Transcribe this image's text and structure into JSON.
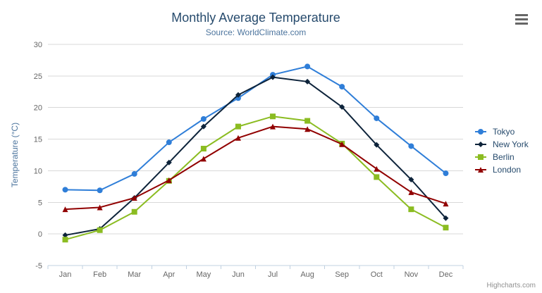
{
  "chart_data": {
    "type": "line",
    "title": "Monthly Average Temperature",
    "subtitle": "Source: WorldClimate.com",
    "xlabel": "",
    "ylabel": "Temperature (°C)",
    "categories": [
      "Jan",
      "Feb",
      "Mar",
      "Apr",
      "May",
      "Jun",
      "Jul",
      "Aug",
      "Sep",
      "Oct",
      "Nov",
      "Dec"
    ],
    "ylim": [
      -5,
      30
    ],
    "yticks": [
      -5,
      0,
      5,
      10,
      15,
      20,
      25,
      30
    ],
    "grid": true,
    "legend_position": "right",
    "series": [
      {
        "name": "Tokyo",
        "color": "#2f7ed8",
        "marker": "circle",
        "values": [
          7.0,
          6.9,
          9.5,
          14.5,
          18.2,
          21.5,
          25.2,
          26.5,
          23.3,
          18.3,
          13.9,
          9.6
        ]
      },
      {
        "name": "New York",
        "color": "#0d233a",
        "marker": "diamond",
        "values": [
          -0.2,
          0.8,
          5.7,
          11.3,
          17.0,
          22.0,
          24.8,
          24.1,
          20.1,
          14.1,
          8.6,
          2.5
        ]
      },
      {
        "name": "Berlin",
        "color": "#8bbc21",
        "marker": "square",
        "values": [
          -0.9,
          0.6,
          3.5,
          8.4,
          13.5,
          17.0,
          18.6,
          17.9,
          14.3,
          9.0,
          3.9,
          1.0
        ]
      },
      {
        "name": "London",
        "color": "#910000",
        "marker": "triangle",
        "values": [
          3.9,
          4.2,
          5.7,
          8.5,
          11.9,
          15.2,
          17.0,
          16.6,
          14.2,
          10.3,
          6.6,
          4.8
        ]
      }
    ],
    "colors": {
      "title_text": "#274b6d",
      "subtitle_text": "#4d759e",
      "axis_title_text": "#4d759e",
      "tick_label_text": "#666666",
      "gridline": "#d8d8d8",
      "axis_line": "#c0d0e0",
      "legend_text": "#274b6d"
    }
  },
  "ui": {
    "credits": "Highcharts.com",
    "menu_icon": "hamburger-icon"
  }
}
